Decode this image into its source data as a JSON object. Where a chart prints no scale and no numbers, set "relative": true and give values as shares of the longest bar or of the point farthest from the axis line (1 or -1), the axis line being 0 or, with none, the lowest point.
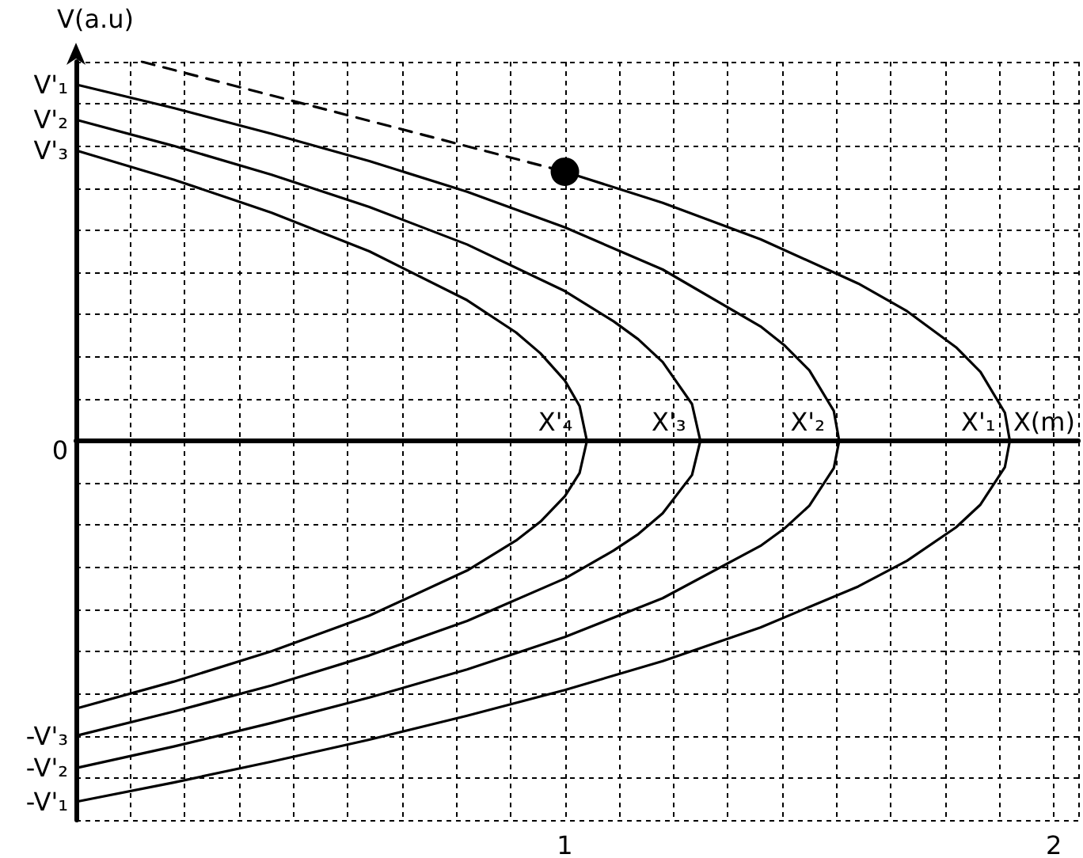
{
  "chart_data": {
    "type": "line",
    "relative": true,
    "xlabel": "X(m)",
    "ylabel": "V(a.u)",
    "xlim": [
      0,
      2.05
    ],
    "xticks": [
      {
        "value": 0,
        "label": null
      },
      1,
      2
    ],
    "grid": true,
    "series": [
      {
        "color": "#000000",
        "x": [
          0,
          0.2,
          0.4,
          0.6,
          0.8,
          0.9,
          0.95,
          1.0,
          1.03,
          1.045,
          1.03,
          1.0,
          0.95,
          0.9,
          0.8,
          0.6,
          0.4,
          0.2,
          0
        ],
        "values": [
          0.766,
          0.689,
          0.602,
          0.5,
          0.371,
          0.286,
          0.231,
          0.159,
          0.092,
          0,
          -0.085,
          -0.146,
          -0.213,
          -0.263,
          -0.342,
          -0.461,
          -0.555,
          -0.635,
          -0.706
        ]
      },
      {
        "color": "#000000",
        "x": [
          0,
          0.2,
          0.4,
          0.6,
          0.8,
          1.0,
          1.1,
          1.15,
          1.2,
          1.26,
          1.277,
          1.26,
          1.2,
          1.15,
          1.1,
          1.0,
          0.8,
          0.6,
          0.4,
          0.2,
          0
        ],
        "values": [
          0.847,
          0.778,
          0.702,
          0.617,
          0.518,
          0.395,
          0.315,
          0.268,
          0.208,
          0.097,
          0,
          -0.09,
          -0.191,
          -0.246,
          -0.289,
          -0.363,
          -0.475,
          -0.566,
          -0.645,
          -0.714,
          -0.778
        ]
      },
      {
        "color": "#000000",
        "x": [
          0,
          0.2,
          0.4,
          0.6,
          0.8,
          1.0,
          1.2,
          1.4,
          1.45,
          1.5,
          1.55,
          1.561,
          1.55,
          1.5,
          1.45,
          1.4,
          1.2,
          1.0,
          0.8,
          0.6,
          0.4,
          0.2,
          0
        ],
        "values": [
          0.94,
          0.878,
          0.81,
          0.738,
          0.657,
          0.563,
          0.452,
          0.302,
          0.251,
          0.186,
          0.079,
          0,
          -0.072,
          -0.171,
          -0.23,
          -0.277,
          -0.415,
          -0.517,
          -0.603,
          -0.677,
          -0.744,
          -0.806,
          -0.863
        ]
      },
      {
        "color": "#000000",
        "x": [
          1.0,
          1.2,
          1.4,
          1.6,
          1.7,
          1.8,
          1.85,
          1.9,
          1.91,
          1.9,
          1.85,
          1.8,
          1.7,
          1.6,
          1.4,
          1.2,
          1.0,
          0.8,
          0.6,
          0.4,
          0.2,
          0
        ],
        "values": [
          0.71,
          0.628,
          0.532,
          0.415,
          0.342,
          0.247,
          0.182,
          0.074,
          0,
          -0.069,
          -0.168,
          -0.228,
          -0.316,
          -0.384,
          -0.492,
          -0.581,
          -0.657,
          -0.725,
          -0.788,
          -0.846,
          -0.901,
          -0.952
        ]
      },
      {
        "color": "#000000",
        "line_style": "dashed",
        "x": [
          0.135,
          1.0
        ],
        "values": [
          1,
          0.71
        ]
      },
      {
        "type": "scatter",
        "marker": "circle",
        "color": "#000000",
        "x": [
          1.0
        ],
        "values": [
          0.71
        ]
      }
    ],
    "annotations": [
      "0",
      {
        "text": "V'₁",
        "x": 0,
        "y": 0.94
      },
      {
        "text": "V'₂",
        "x": 0,
        "y": 0.847
      },
      {
        "text": "V'₃",
        "x": 0,
        "y": 0.766
      },
      {
        "text": "-V'₃",
        "x": 0,
        "y": -0.778
      },
      {
        "text": "-V'₂",
        "x": 0,
        "y": -0.863
      },
      {
        "text": "-V'₁",
        "x": 0,
        "y": -0.952
      },
      {
        "text": "X'₄",
        "x": 1.045,
        "y": 0
      },
      {
        "text": "X'₃",
        "x": 1.277,
        "y": 0
      },
      {
        "text": "X'₂",
        "x": 1.561,
        "y": 0
      },
      {
        "text": "X'₁",
        "x": 1.91,
        "y": 0
      }
    ]
  }
}
